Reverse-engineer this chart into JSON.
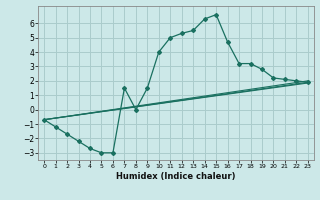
{
  "xlabel": "Humidex (Indice chaleur)",
  "bg_color": "#cce8e8",
  "grid_color": "#aacccc",
  "line_color": "#1a7060",
  "xlim": [
    -0.5,
    23.5
  ],
  "ylim": [
    -3.5,
    7.2
  ],
  "xticks": [
    0,
    1,
    2,
    3,
    4,
    5,
    6,
    7,
    8,
    9,
    10,
    11,
    12,
    13,
    14,
    15,
    16,
    17,
    18,
    19,
    20,
    21,
    22,
    23
  ],
  "yticks": [
    -3,
    -2,
    -1,
    0,
    1,
    2,
    3,
    4,
    5,
    6
  ],
  "curve_x": [
    0,
    1,
    2,
    3,
    4,
    5,
    6,
    7,
    8,
    9,
    10,
    11,
    12,
    13,
    14,
    15,
    16,
    17,
    18,
    19,
    20,
    21,
    22,
    23
  ],
  "curve_y": [
    -0.7,
    -1.2,
    -1.7,
    -2.2,
    -2.7,
    -3.0,
    -3.0,
    1.5,
    0.0,
    1.5,
    4.0,
    5.0,
    5.3,
    5.5,
    6.3,
    6.6,
    4.7,
    3.2,
    3.2,
    2.8,
    2.2,
    2.1,
    2.0,
    1.9
  ],
  "line1": {
    "x": [
      0,
      23
    ],
    "y": [
      -0.7,
      2.0
    ]
  },
  "line2": {
    "x": [
      0,
      23
    ],
    "y": [
      -0.7,
      1.9
    ]
  },
  "line3": {
    "x": [
      0,
      23
    ],
    "y": [
      -0.7,
      1.85
    ]
  }
}
